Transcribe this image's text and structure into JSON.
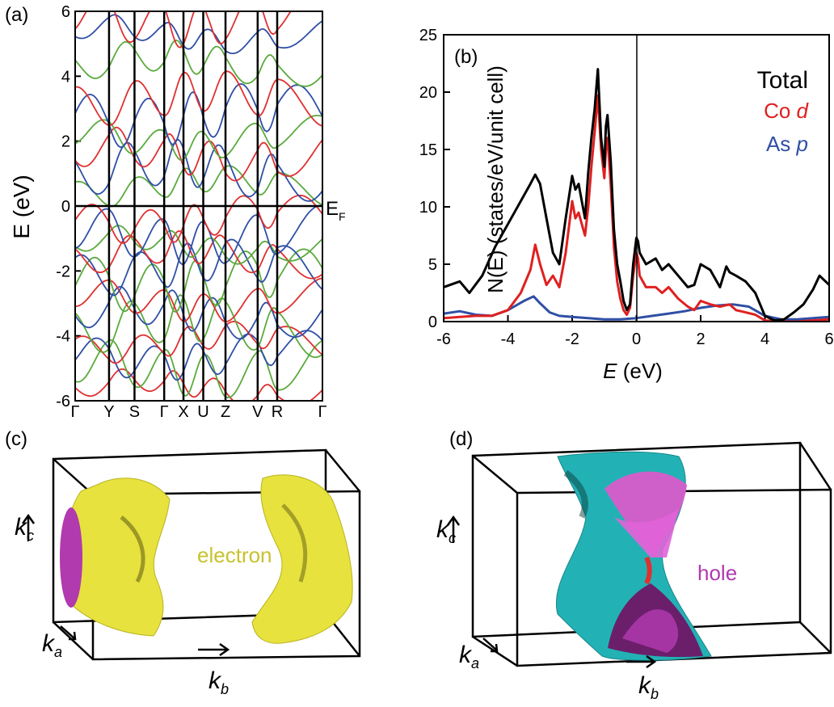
{
  "panels": {
    "a": {
      "label": "(a)"
    },
    "b": {
      "label": "(b)"
    },
    "c": {
      "label": "(c)"
    },
    "d": {
      "label": "(d)"
    }
  },
  "chart_data": [
    {
      "type": "line",
      "panel": "(a)",
      "ylabel": "E (eV)",
      "ylim": [
        -6,
        6
      ],
      "yticks": [
        "6",
        "4",
        "2",
        "0",
        "-2",
        "-4",
        "-6"
      ],
      "xticks": [
        "Γ",
        "Y",
        "S",
        "Γ",
        "X",
        "U",
        "Z",
        "V",
        "R",
        "Γ"
      ],
      "fermi_label": {
        "main": "E",
        "sub": "F"
      },
      "series_colors": [
        "#e03030",
        "#5aaa3c",
        "#2f4fa5"
      ],
      "band_energies": [
        -5.6,
        -5.0,
        -4.6,
        -4.2,
        -3.7,
        -3.3,
        -2.9,
        -2.3,
        -1.9,
        -1.5,
        -1.2,
        -0.9,
        -0.4,
        0.6,
        1.1,
        1.6,
        2.1,
        2.8,
        3.3,
        4.4,
        5.3,
        5.8
      ]
    },
    {
      "type": "line",
      "panel": "(b)",
      "xlabel": "E (eV)",
      "ylabel": "N(E)  (states/eV/unit cell)",
      "xlim": [
        -6,
        6
      ],
      "ylim": [
        0,
        25
      ],
      "xticks": [
        -6,
        -4,
        -2,
        0,
        2,
        4,
        6
      ],
      "yticks": [
        0,
        5,
        10,
        15,
        20,
        25
      ],
      "legend_position": "top-right",
      "series": [
        {
          "name": "Total",
          "color": "#000000",
          "x": [
            -6.0,
            -5.5,
            -5.2,
            -4.8,
            -4.4,
            -4.0,
            -3.6,
            -3.3,
            -3.15,
            -3.0,
            -2.8,
            -2.6,
            -2.4,
            -2.2,
            -2.0,
            -1.9,
            -1.8,
            -1.7,
            -1.6,
            -1.5,
            -1.4,
            -1.3,
            -1.2,
            -1.1,
            -1.0,
            -0.95,
            -0.9,
            -0.8,
            -0.7,
            -0.6,
            -0.5,
            -0.4,
            -0.3,
            -0.2,
            -0.1,
            0.0,
            0.05,
            0.1,
            0.3,
            0.6,
            0.8,
            1.0,
            1.3,
            1.6,
            1.8,
            2.0,
            2.3,
            2.6,
            2.8,
            2.9,
            3.1,
            3.4,
            3.7,
            4.0,
            4.3,
            4.6,
            4.9,
            5.2,
            5.5,
            5.7,
            6.0
          ],
          "values": [
            3.0,
            3.5,
            2.5,
            4.0,
            6.5,
            8.5,
            10.5,
            12.0,
            12.8,
            12.0,
            9.0,
            6.0,
            5.0,
            9.0,
            12.7,
            11.5,
            12.0,
            10.5,
            9.0,
            13.0,
            16.0,
            18.5,
            22.0,
            16.0,
            13.5,
            17.0,
            18.0,
            14.0,
            8.0,
            5.0,
            3.5,
            1.8,
            1.0,
            1.5,
            5.0,
            7.3,
            7.0,
            6.0,
            5.0,
            5.5,
            4.5,
            5.0,
            4.0,
            3.0,
            3.2,
            5.0,
            4.5,
            3.0,
            4.8,
            4.3,
            4.0,
            3.5,
            2.5,
            0.5,
            0.1,
            0.2,
            0.8,
            1.5,
            2.8,
            4.0,
            3.2
          ]
        },
        {
          "name": "Co d",
          "color": "#e02020",
          "x": [
            -6.0,
            -5.5,
            -5.0,
            -4.5,
            -4.0,
            -3.6,
            -3.3,
            -3.15,
            -3.0,
            -2.8,
            -2.6,
            -2.4,
            -2.2,
            -2.0,
            -1.9,
            -1.8,
            -1.7,
            -1.6,
            -1.5,
            -1.4,
            -1.3,
            -1.2,
            -1.1,
            -1.0,
            -0.95,
            -0.9,
            -0.8,
            -0.7,
            -0.6,
            -0.5,
            -0.4,
            -0.3,
            -0.2,
            -0.1,
            0.0,
            0.05,
            0.1,
            0.3,
            0.6,
            0.8,
            1.0,
            1.3,
            1.6,
            1.8,
            2.0,
            2.3,
            2.6,
            2.9,
            3.1,
            3.4,
            3.7,
            4.0,
            4.5,
            5.0,
            5.5,
            6.0
          ],
          "values": [
            0.3,
            0.4,
            0.5,
            0.5,
            1.0,
            2.5,
            4.5,
            6.7,
            5.0,
            3.2,
            4.0,
            3.0,
            6.0,
            10.5,
            9.0,
            9.5,
            8.5,
            7.5,
            10.0,
            13.5,
            16.5,
            19.7,
            15.0,
            12.5,
            15.0,
            16.0,
            12.0,
            6.5,
            3.5,
            2.0,
            1.0,
            0.6,
            1.2,
            4.0,
            6.0,
            5.5,
            4.0,
            3.0,
            3.0,
            2.5,
            3.0,
            2.0,
            1.3,
            1.0,
            1.8,
            1.5,
            1.3,
            1.5,
            1.0,
            0.8,
            0.6,
            0.1,
            0.0,
            0.0,
            0.1,
            0.2
          ]
        },
        {
          "name": "As p",
          "color": "#2f4fa5",
          "x": [
            -6.0,
            -5.5,
            -5.0,
            -4.5,
            -4.0,
            -3.5,
            -3.2,
            -3.0,
            -2.7,
            -2.4,
            -2.0,
            -1.5,
            -1.0,
            -0.5,
            0.0,
            0.5,
            1.0,
            1.5,
            2.0,
            2.5,
            3.0,
            3.5,
            4.0,
            4.5,
            5.0,
            5.5,
            6.0
          ],
          "values": [
            0.7,
            0.9,
            0.6,
            0.5,
            1.0,
            1.8,
            2.2,
            1.6,
            0.8,
            0.5,
            0.4,
            0.3,
            0.2,
            0.2,
            0.3,
            0.5,
            0.7,
            0.9,
            1.2,
            1.4,
            1.5,
            1.3,
            0.5,
            0.2,
            0.2,
            0.3,
            0.4
          ]
        }
      ]
    }
  ],
  "fermi_surfaces": {
    "c": {
      "label": "electron",
      "label_color": "#c7c22e",
      "axes": {
        "kc": "k",
        "kc_sub": "c",
        "ka": "k",
        "ka_sub": "a",
        "kb": "k",
        "kb_sub": "b"
      }
    },
    "d": {
      "label": "hole",
      "label_color": "#b03aae",
      "axes": {
        "kc": "k",
        "kc_sub": "c",
        "ka": "k",
        "ka_sub": "a",
        "kb": "k",
        "kb_sub": "b"
      }
    }
  }
}
